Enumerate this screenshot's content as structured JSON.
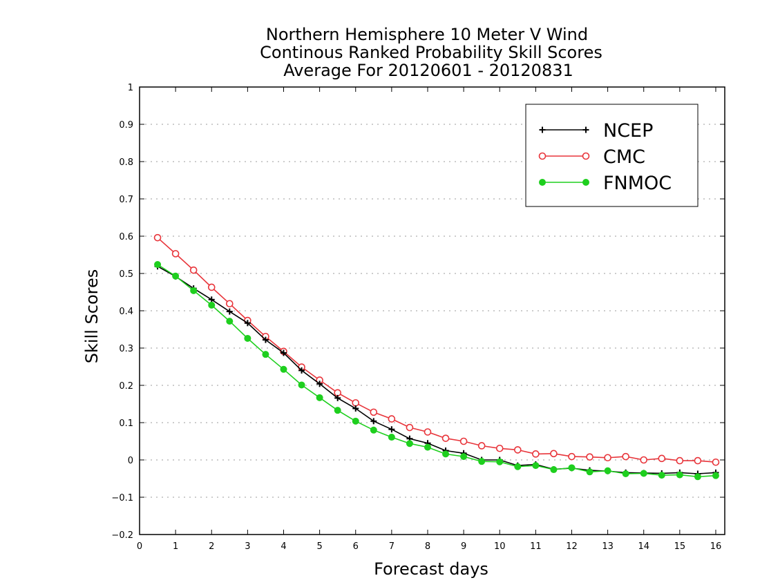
{
  "chart_data": {
    "type": "line",
    "title": [
      "Northern Hemisphere 10 Meter V Wind",
      "Continous Ranked Probability Skill Scores",
      "Average For 20120601 - 20120831"
    ],
    "xlabel": "Forecast days",
    "ylabel": "Skill Scores",
    "xlim": [
      0,
      16.25
    ],
    "ylim": [
      -0.2,
      1
    ],
    "xticks": [
      "0",
      "1",
      "2",
      "3",
      "4",
      "5",
      "6",
      "7",
      "8",
      "9",
      "10",
      "11",
      "12",
      "13",
      "14",
      "15",
      "16"
    ],
    "yticks": [
      "−0.2",
      "−0.1",
      "0",
      "0.1",
      "0.2",
      "0.3",
      "0.4",
      "0.5",
      "0.6",
      "0.7",
      "0.8",
      "0.9",
      "1"
    ],
    "grid": true,
    "legend_position": "top-right",
    "x": [
      0.5,
      1,
      1.5,
      2,
      2.5,
      3,
      3.5,
      4,
      4.5,
      5,
      5.5,
      6,
      6.5,
      7,
      7.5,
      8,
      8.5,
      9,
      9.5,
      10,
      10.5,
      11,
      11.5,
      12,
      12.5,
      13,
      13.5,
      14,
      14.5,
      15,
      15.5,
      16
    ],
    "series": [
      {
        "name": "NCEP",
        "color": "#000000",
        "marker": "plus",
        "values": [
          0.519,
          0.492,
          0.46,
          0.43,
          0.398,
          0.367,
          0.322,
          0.287,
          0.24,
          0.204,
          0.166,
          0.138,
          0.104,
          0.082,
          0.057,
          0.045,
          0.025,
          0.018,
          0.0,
          0.0,
          -0.015,
          -0.012,
          -0.025,
          -0.022,
          -0.028,
          -0.03,
          -0.034,
          -0.035,
          -0.036,
          -0.034,
          -0.037,
          -0.034
        ]
      },
      {
        "name": "CMC",
        "color": "#e8343a",
        "marker": "open-circle",
        "values": [
          0.596,
          0.553,
          0.509,
          0.463,
          0.419,
          0.374,
          0.331,
          0.291,
          0.249,
          0.214,
          0.18,
          0.153,
          0.128,
          0.11,
          0.087,
          0.075,
          0.058,
          0.05,
          0.038,
          0.031,
          0.027,
          0.016,
          0.017,
          0.009,
          0.008,
          0.006,
          0.009,
          0.0,
          0.004,
          -0.002,
          -0.002,
          -0.006
        ]
      },
      {
        "name": "FNMOC",
        "color": "#1ecf1e",
        "marker": "filled-circle",
        "values": [
          0.524,
          0.493,
          0.454,
          0.415,
          0.372,
          0.326,
          0.283,
          0.243,
          0.201,
          0.167,
          0.133,
          0.104,
          0.08,
          0.061,
          0.044,
          0.034,
          0.016,
          0.009,
          -0.004,
          -0.005,
          -0.018,
          -0.015,
          -0.026,
          -0.021,
          -0.032,
          -0.029,
          -0.037,
          -0.036,
          -0.041,
          -0.04,
          -0.045,
          -0.042
        ]
      }
    ]
  }
}
